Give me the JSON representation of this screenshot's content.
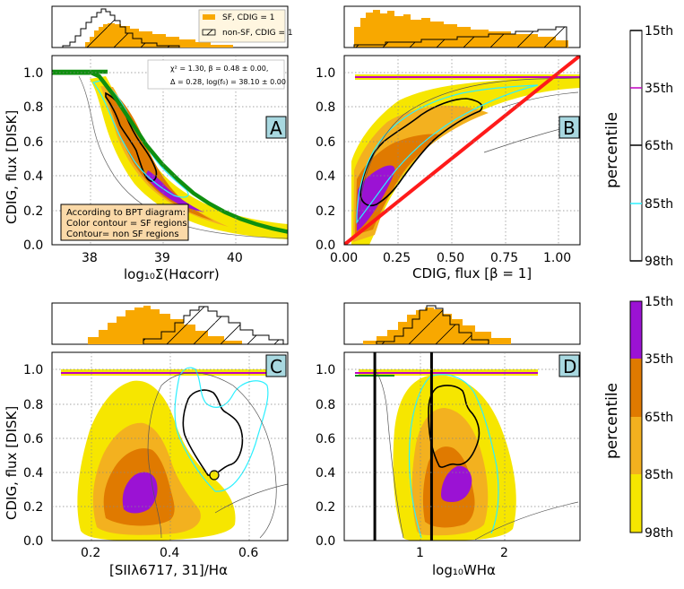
{
  "colors": {
    "yellow": "#f6e600",
    "orange_light": "#f3b11f",
    "orange": "#e07a00",
    "purple": "#9b12d4",
    "hist_fill": "#f8a800",
    "green": "#0f8f0f",
    "red": "#ff1a1a",
    "cyan": "#2cf0ff",
    "panel_label_bg": "#a8d8e0",
    "note_bg": "#fad9a8"
  },
  "chart_data": [
    {
      "id": "A",
      "type": "contour",
      "panel_label": "A",
      "xlabel": "log₁₀Σ(Hαcorr)",
      "ylabel": "C_{DIG, flux} [DISK]",
      "ylabel_text": "CDIG, flux [DISK]",
      "xlim": [
        37.5,
        40.5
      ],
      "ylim": [
        0.0,
        1.1
      ],
      "xticks": [
        "38",
        "39",
        "40"
      ],
      "yticks": [
        "0.0",
        "0.2",
        "0.4",
        "0.6",
        "0.8",
        "1.0"
      ],
      "legend_hist": [
        "SF, C_DIG = 1",
        "non-SF, C_DIG = 1"
      ],
      "legend_text": [
        "SF, CDIG = 1",
        "non-SF, CDIG = 1"
      ],
      "fit_text": [
        "χ² = 1.30, β = 0.48 ± 0.00,",
        "Δ = 0.28, log(f₀) = 38.10 ± 0.00"
      ],
      "note": [
        "According to BPT diagram:",
        "Color contour = SF regions",
        "Contour= non SF regions"
      ],
      "fit_curve": {
        "x": [
          37.5,
          37.7,
          37.9,
          38.0,
          38.1,
          38.3,
          38.5,
          38.7,
          38.9,
          39.1,
          39.3,
          39.5,
          39.7,
          39.9,
          40.1,
          40.3,
          40.5
        ],
        "y": [
          1.0,
          1.0,
          1.0,
          1.0,
          0.98,
          0.86,
          0.72,
          0.58,
          0.47,
          0.38,
          0.3,
          0.24,
          0.19,
          0.15,
          0.12,
          0.095,
          0.075
        ]
      }
    },
    {
      "id": "B",
      "type": "contour",
      "panel_label": "B",
      "xlabel": "C_{DIG, flux} [β = 1]",
      "xlabel_text": "CDIG, flux [β = 1]",
      "xlim": [
        0.0,
        1.1
      ],
      "ylim": [
        0.0,
        1.1
      ],
      "xticks": [
        "0.00",
        "0.25",
        "0.50",
        "0.75",
        "1.00"
      ],
      "yticks": [
        "0.0",
        "0.2",
        "0.4",
        "0.6",
        "0.8",
        "1.0"
      ],
      "one_to_one_line": {
        "x": [
          0.0,
          1.1
        ],
        "y": [
          0.0,
          1.1
        ]
      }
    },
    {
      "id": "C",
      "type": "contour",
      "panel_label": "C",
      "xlabel": "[SIIλ6717, 31]/Hα",
      "ylabel_text": "CDIG, flux [DISK]",
      "xlim": [
        0.1,
        0.7
      ],
      "ylim": [
        0.0,
        1.1
      ],
      "xticks": [
        "0.2",
        "0.4",
        "0.6"
      ],
      "yticks": [
        "0.0",
        "0.2",
        "0.4",
        "0.6",
        "0.8",
        "1.0"
      ]
    },
    {
      "id": "D",
      "type": "contour",
      "panel_label": "D",
      "xlabel": "log₁₀W_Hα",
      "xlabel_text": "log₁₀WHα",
      "xlim": [
        0.15,
        2.85
      ],
      "ylim": [
        0.0,
        1.1
      ],
      "xticks": [
        "1",
        "2"
      ],
      "yticks": [
        "0.0",
        "0.2",
        "0.4",
        "0.6",
        "0.8",
        "1.0"
      ],
      "vertical_lines": [
        0.5,
        1.15
      ]
    }
  ],
  "colorbar_top": {
    "label": "percentile",
    "ticks": [
      "15th",
      "35th",
      "65th",
      "85th",
      "98th"
    ],
    "line_colors": [
      "#000000",
      "#c000c0",
      "#000000",
      "#2cf0ff",
      "#000000"
    ]
  },
  "colorbar_bottom": {
    "label": "percentile",
    "ticks": [
      "15th",
      "35th",
      "65th",
      "85th",
      "98th"
    ],
    "colors": [
      "#9b12d4",
      "#e07a00",
      "#f3b11f",
      "#f6e600"
    ]
  }
}
